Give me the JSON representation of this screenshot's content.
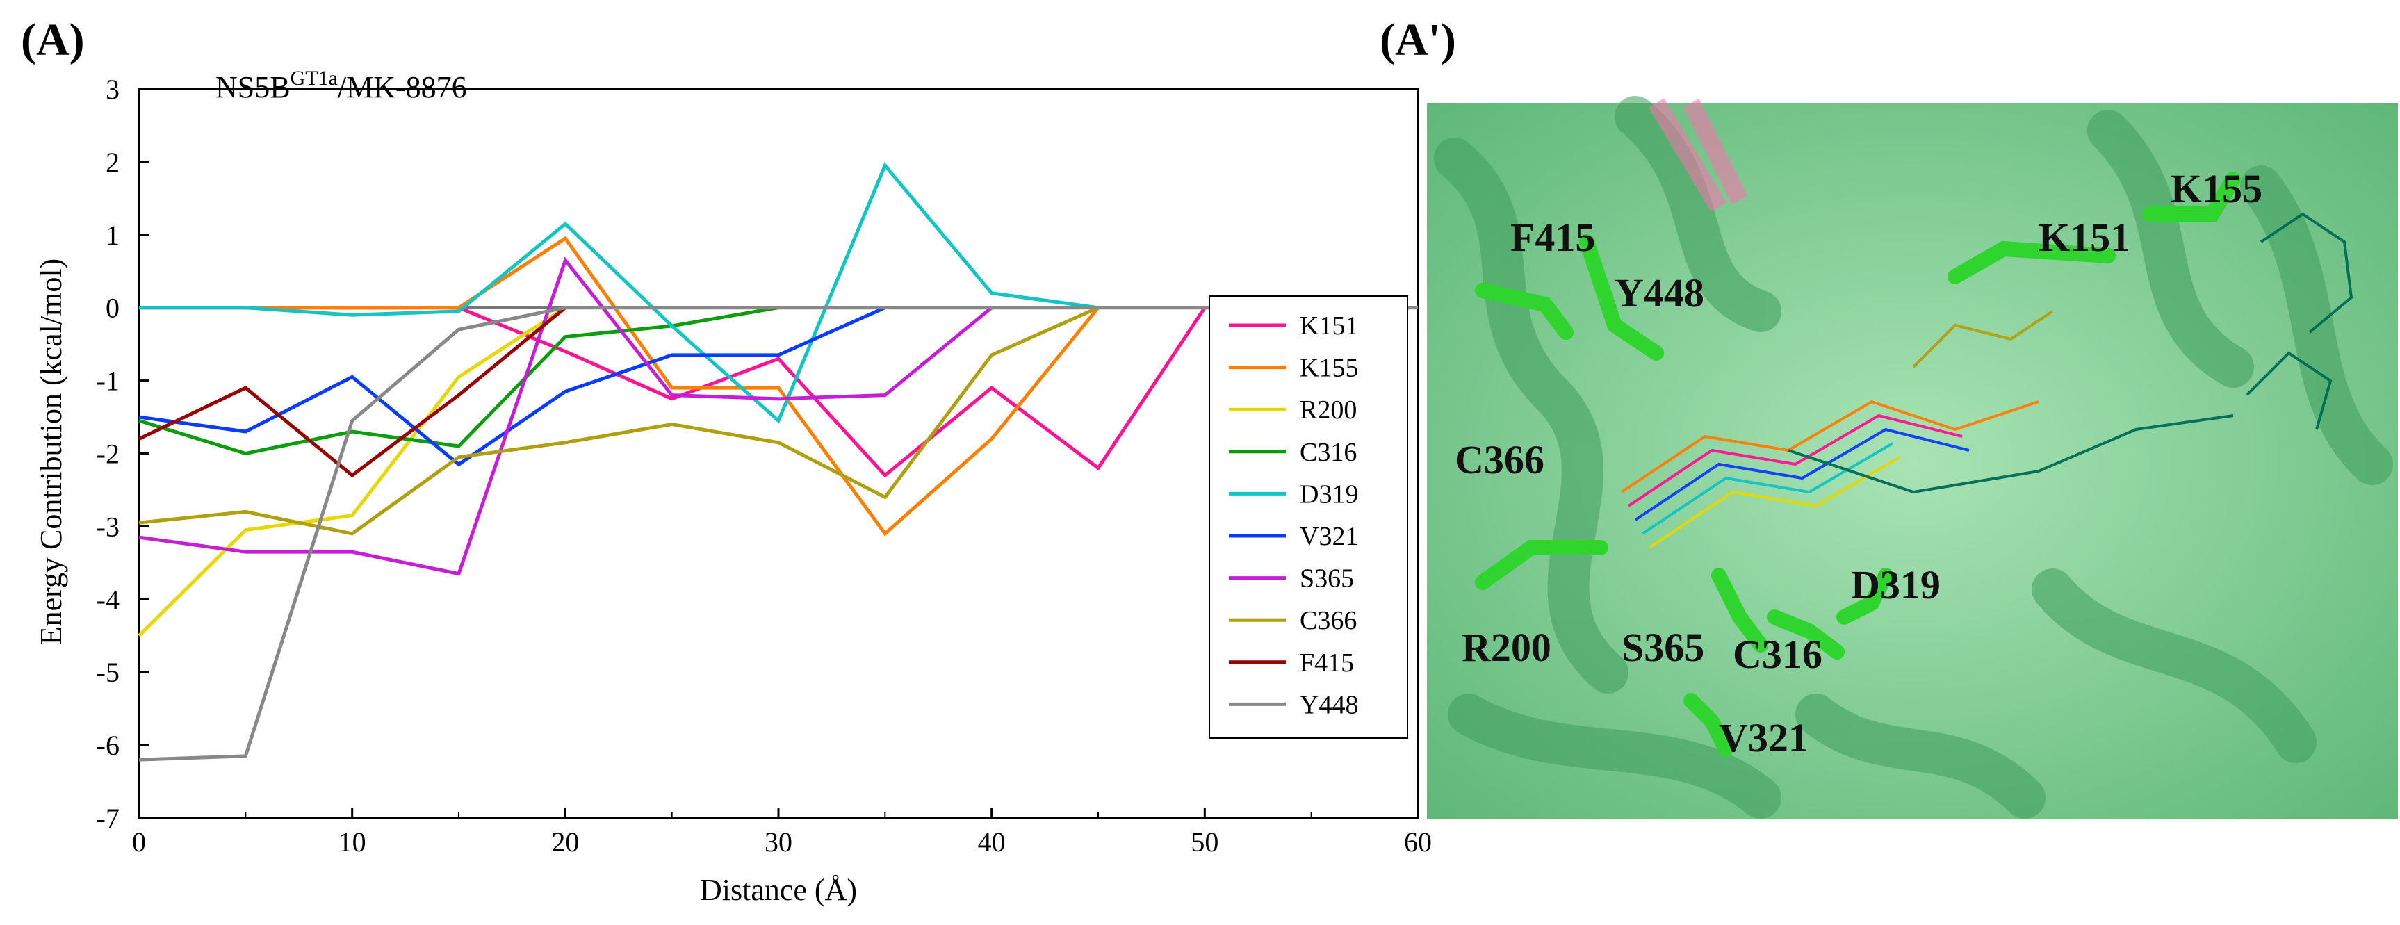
{
  "panel_labels": {
    "left": "(A)",
    "right": "(A')"
  },
  "colors": {
    "K151": "#ff1493",
    "K155": "#ff7f00",
    "R200": "#e6d800",
    "C316": "#0a9e0a",
    "D319": "#12c4c4",
    "V321": "#0a3cff",
    "S365": "#c61ed6",
    "C366": "#b0a010",
    "F415": "#990000",
    "Y448": "#888888"
  },
  "chart_data": {
    "type": "line",
    "title": "NS5B",
    "title_superscript": "GT1a",
    "title_suffix": "/MK-8876",
    "xlabel": "Distance (Å)",
    "ylabel": "Energy Contribution (kcal/mol)",
    "xlim": [
      0,
      60
    ],
    "ylim": [
      -7,
      3
    ],
    "xticks": [
      0,
      10,
      20,
      30,
      40,
      50,
      60
    ],
    "yticks": [
      -7,
      -6,
      -5,
      -4,
      -3,
      -2,
      -1,
      0,
      1,
      2,
      3
    ],
    "legend_position": "right",
    "series": [
      {
        "name": "K151",
        "x": [
          0,
          5,
          10,
          15,
          20,
          25,
          30,
          35,
          40,
          45,
          50
        ],
        "values": [
          0,
          0,
          0,
          0,
          -0.6,
          -1.25,
          -0.7,
          -2.3,
          -1.1,
          -2.2,
          0
        ]
      },
      {
        "name": "K155",
        "x": [
          0,
          5,
          10,
          15,
          20,
          25,
          30,
          35,
          40,
          45
        ],
        "values": [
          0,
          0,
          0,
          0,
          0.95,
          -1.1,
          -1.1,
          -3.1,
          -1.8,
          0
        ]
      },
      {
        "name": "R200",
        "x": [
          0,
          5,
          10,
          15,
          20
        ],
        "values": [
          -4.5,
          -3.05,
          -2.85,
          -0.95,
          0
        ]
      },
      {
        "name": "C316",
        "x": [
          0,
          5,
          10,
          15,
          20,
          25,
          30
        ],
        "values": [
          -1.55,
          -2.0,
          -1.7,
          -1.9,
          -0.4,
          -0.25,
          0
        ]
      },
      {
        "name": "D319",
        "x": [
          0,
          5,
          10,
          15,
          20,
          25,
          30,
          35,
          40,
          45
        ],
        "values": [
          0,
          0,
          -0.1,
          -0.05,
          1.15,
          -0.25,
          -1.55,
          1.95,
          0.2,
          0
        ]
      },
      {
        "name": "V321",
        "x": [
          0,
          5,
          10,
          15,
          20,
          25,
          30,
          35
        ],
        "values": [
          -1.5,
          -1.7,
          -0.95,
          -2.15,
          -1.15,
          -0.65,
          -0.65,
          0
        ]
      },
      {
        "name": "S365",
        "x": [
          0,
          5,
          10,
          15,
          20,
          25,
          30,
          35,
          40
        ],
        "values": [
          -3.15,
          -3.35,
          -3.35,
          -3.65,
          0.65,
          -1.2,
          -1.25,
          -1.2,
          0
        ]
      },
      {
        "name": "C366",
        "x": [
          0,
          5,
          10,
          15,
          20,
          25,
          30,
          35,
          40,
          45
        ],
        "values": [
          -2.95,
          -2.8,
          -3.1,
          -2.05,
          -1.85,
          -1.6,
          -1.85,
          -2.6,
          -0.65,
          0
        ]
      },
      {
        "name": "F415",
        "x": [
          0,
          5,
          10,
          15,
          20
        ],
        "values": [
          -1.8,
          -1.1,
          -2.3,
          -1.2,
          0
        ]
      },
      {
        "name": "Y448",
        "x": [
          0,
          5,
          10,
          15,
          20,
          25,
          30,
          35,
          40,
          45,
          50,
          55,
          60
        ],
        "values": [
          -6.2,
          -6.15,
          -1.55,
          -0.3,
          0,
          0,
          0,
          0,
          0,
          0,
          0,
          0,
          0
        ]
      }
    ]
  },
  "structure_labels": [
    "K155",
    "K151",
    "F415",
    "Y448",
    "C366",
    "R200",
    "S365",
    "C316",
    "D319",
    "V321"
  ]
}
